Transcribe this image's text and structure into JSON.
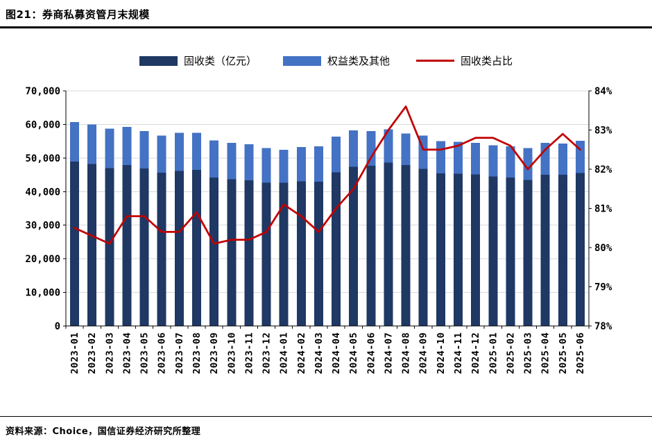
{
  "header": {
    "title": "图21：券商私募资管月末规模"
  },
  "footer": {
    "source": "资料来源：Choice，国信证券经济研究所整理"
  },
  "chart_data": {
    "type": "bar",
    "subtype": "stacked-bars-with-line-overlay",
    "legend_position": "top",
    "grid": true,
    "grid_color": "#D9D9D9",
    "axis_color": "#000000",
    "categories": [
      "2023-01",
      "2023-02",
      "2023-03",
      "2023-04",
      "2023-05",
      "2023-06",
      "2023-07",
      "2023-08",
      "2023-09",
      "2023-10",
      "2023-11",
      "2023-12",
      "2024-01",
      "2024-02",
      "2024-03",
      "2024-04",
      "2024-05",
      "2024-06",
      "2024-07",
      "2024-08",
      "2024-09",
      "2024-10",
      "2024-11",
      "2024-12",
      "2025-01",
      "2025-02",
      "2025-03",
      "2025-04",
      "2025-05",
      "2025-06"
    ],
    "series": [
      {
        "name": "固收类（亿元）",
        "type": "bar",
        "stack": true,
        "axis": "left",
        "color": "#1F3864",
        "values": [
          48900,
          48200,
          47000,
          47900,
          46900,
          45600,
          46200,
          46500,
          44200,
          43700,
          43400,
          42600,
          42600,
          43100,
          43000,
          45700,
          47400,
          47700,
          48600,
          47900,
          46800,
          45400,
          45300,
          45100,
          44500,
          44200,
          43500,
          45000,
          45000,
          45500
        ]
      },
      {
        "name": "权益类及其他",
        "type": "bar",
        "stack": true,
        "axis": "left",
        "color": "#4472C4",
        "values": [
          11800,
          11800,
          11700,
          11400,
          11100,
          11100,
          11300,
          11000,
          11000,
          10800,
          10700,
          10400,
          9900,
          10200,
          10500,
          10700,
          10800,
          10300,
          9900,
          9400,
          9900,
          9600,
          9500,
          9400,
          9300,
          9300,
          9500,
          9500,
          9300,
          9600
        ]
      },
      {
        "name": "固收类占比",
        "type": "line",
        "axis": "right",
        "color": "#C00000",
        "values": [
          80.5,
          80.3,
          80.1,
          80.8,
          80.8,
          80.4,
          80.4,
          80.9,
          80.1,
          80.2,
          80.2,
          80.4,
          81.1,
          80.8,
          80.4,
          81.0,
          81.5,
          82.3,
          83.0,
          83.6,
          82.5,
          82.5,
          82.6,
          82.8,
          82.8,
          82.6,
          82.0,
          82.5,
          82.9,
          82.5
        ]
      }
    ],
    "left_axis": {
      "min": 0,
      "max": 70000,
      "step": 10000
    },
    "right_axis": {
      "min": 78,
      "max": 84,
      "step": 1,
      "suffix": "%"
    }
  }
}
